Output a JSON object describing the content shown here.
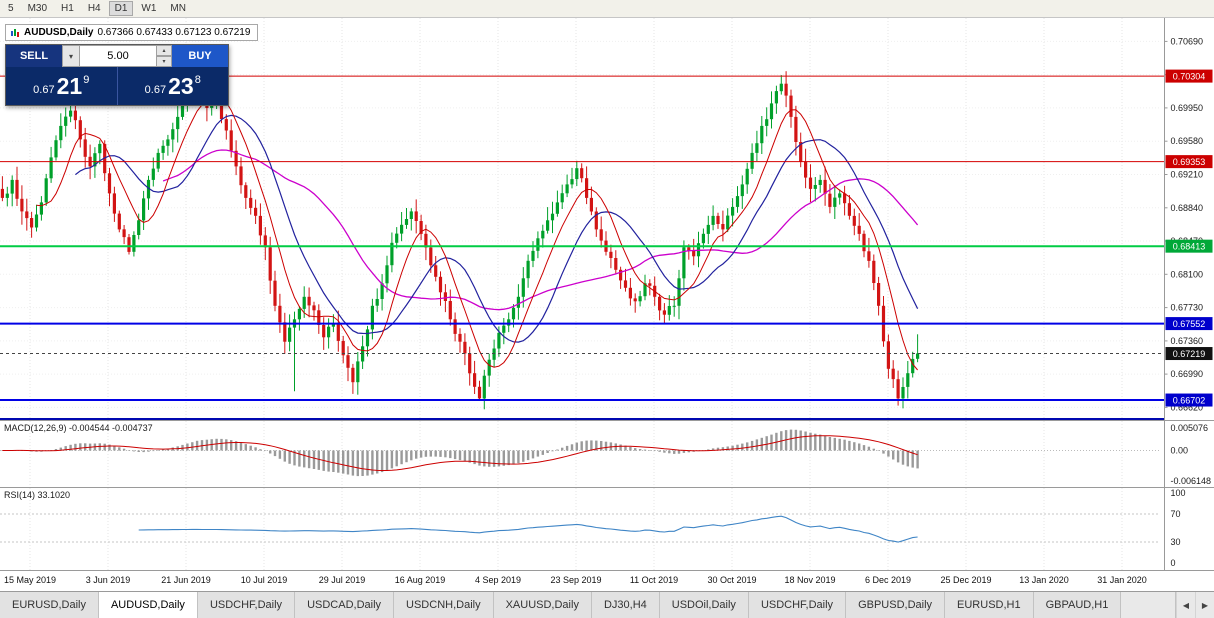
{
  "toolbar": {
    "timeframes": [
      "5",
      "M30",
      "H1",
      "H4",
      "D1",
      "W1",
      "MN"
    ],
    "active": "D1"
  },
  "chart_header": {
    "symbol_title": "AUDUSD,Daily",
    "ohlc": "0.67366 0.67433 0.67123 0.67219"
  },
  "trade_panel": {
    "sell_label": "SELL",
    "buy_label": "BUY",
    "lot_value": "5.00",
    "sell_price": {
      "prefix": "0.67",
      "big": "21",
      "sup": "9"
    },
    "buy_price": {
      "prefix": "0.67",
      "big": "23",
      "sup": "8"
    }
  },
  "icons": {
    "dropdown": "▾",
    "spin_up": "▴",
    "spin_down": "▾",
    "scroll_left": "◀",
    "scroll_right": "▶"
  },
  "indicators": {
    "macd_label": "MACD(12,26,9) -0.004544 -0.004737",
    "macd_axis": [
      "0.005076",
      "0.00",
      "-0.006148"
    ],
    "rsi_label": "RSI(14) 33.1020",
    "rsi_axis": [
      "100",
      "70",
      "30",
      "0"
    ]
  },
  "tabs": {
    "items": [
      "EURUSD,Daily",
      "AUDUSD,Daily",
      "USDCHF,Daily",
      "USDCAD,Daily",
      "USDCNH,Daily",
      "XAUUSD,Daily",
      "DJ30,H4",
      "USDOil,Daily",
      "USDCHF,Daily",
      "GBPUSD,Daily",
      "EURUSD,H1",
      "GBPAUD,H1"
    ],
    "active_index": 1
  },
  "chart_data": {
    "type": "candlestick",
    "symbol": "AUDUSD",
    "timeframe": "Daily",
    "x_labels": [
      "15 May 2019",
      "3 Jun 2019",
      "21 Jun 2019",
      "10 Jul 2019",
      "29 Jul 2019",
      "16 Aug 2019",
      "4 Sep 2019",
      "23 Sep 2019",
      "11 Oct 2019",
      "30 Oct 2019",
      "18 Nov 2019",
      "6 Dec 2019",
      "25 Dec 2019",
      "13 Jan 2020",
      "31 Jan 2020"
    ],
    "y_ticks": [
      "0.70690",
      "0.70320",
      "0.69950",
      "0.69580",
      "0.69210",
      "0.68840",
      "0.68470",
      "0.68100",
      "0.67730",
      "0.67360",
      "0.66990",
      "0.66620"
    ],
    "price_range": {
      "min": 0.6648,
      "max": 0.7095
    },
    "levels": [
      {
        "price": 0.70304,
        "color": "#d40000",
        "width": 1,
        "badge": "0.70304",
        "badge_bg": "#cc0000"
      },
      {
        "price": 0.69353,
        "color": "#d40000",
        "width": 1,
        "badge": "0.69353",
        "badge_bg": "#cc0000"
      },
      {
        "price": 0.68413,
        "color": "#00cc44",
        "width": 2,
        "badge": "0.68413",
        "badge_bg": "#00a838"
      },
      {
        "price": 0.67552,
        "color": "#0000e6",
        "width": 2,
        "badge": "0.67552",
        "badge_bg": "#0000cc"
      },
      {
        "price": 0.66702,
        "color": "#0000e6",
        "width": 2,
        "badge": "0.66702",
        "badge_bg": "#0000cc"
      }
    ],
    "current_price": {
      "value": 0.67219,
      "badge": "0.67219",
      "badge_bg": "#111111"
    },
    "closes": [
      0.6895,
      0.6915,
      0.688,
      0.6862,
      0.689,
      0.694,
      0.6975,
      0.6992,
      0.696,
      0.693,
      0.6955,
      0.69,
      0.686,
      0.6835,
      0.687,
      0.6915,
      0.6945,
      0.696,
      0.6985,
      0.7015,
      0.7028,
      0.6995,
      0.7005,
      0.697,
      0.693,
      0.6895,
      0.6875,
      0.684,
      0.6775,
      0.6735,
      0.676,
      0.6785,
      0.677,
      0.674,
      0.6755,
      0.672,
      0.669,
      0.673,
      0.6775,
      0.68,
      0.6845,
      0.6865,
      0.688,
      0.6855,
      0.682,
      0.679,
      0.676,
      0.6735,
      0.67,
      0.6672,
      0.6715,
      0.6745,
      0.676,
      0.6785,
      0.6825,
      0.685,
      0.687,
      0.689,
      0.691,
      0.6928,
      0.6895,
      0.686,
      0.6835,
      0.6815,
      0.6795,
      0.678,
      0.68,
      0.6785,
      0.6765,
      0.6775,
      0.684,
      0.683,
      0.6855,
      0.6875,
      0.686,
      0.6885,
      0.691,
      0.6945,
      0.6975,
      0.7,
      0.7022,
      0.6985,
      0.6935,
      0.6905,
      0.6915,
      0.6885,
      0.69,
      0.6875,
      0.6855,
      0.6825,
      0.6775,
      0.6705,
      0.6672,
      0.67,
      0.67219
    ],
    "extremes": {
      "20": {
        "high": 0.7036
      },
      "30": {
        "low": 0.668
      },
      "36": {
        "low": 0.6677
      },
      "49": {
        "low": 0.66702
      },
      "80": {
        "high": 0.70315
      },
      "92": {
        "low": 0.6664
      },
      "94": {
        "high": 0.67433,
        "low": 0.67123
      }
    },
    "colors": {
      "up": "#00a02a",
      "down": "#d21414",
      "ma_fast": "#cc0000",
      "ma_mid": "#22229e",
      "ma_slow": "#cc00cc",
      "macd_hist": "#9a9a9a",
      "macd_signal": "#cc0000",
      "rsi": "#3f85c6",
      "grid": "#e4e4e4"
    }
  }
}
